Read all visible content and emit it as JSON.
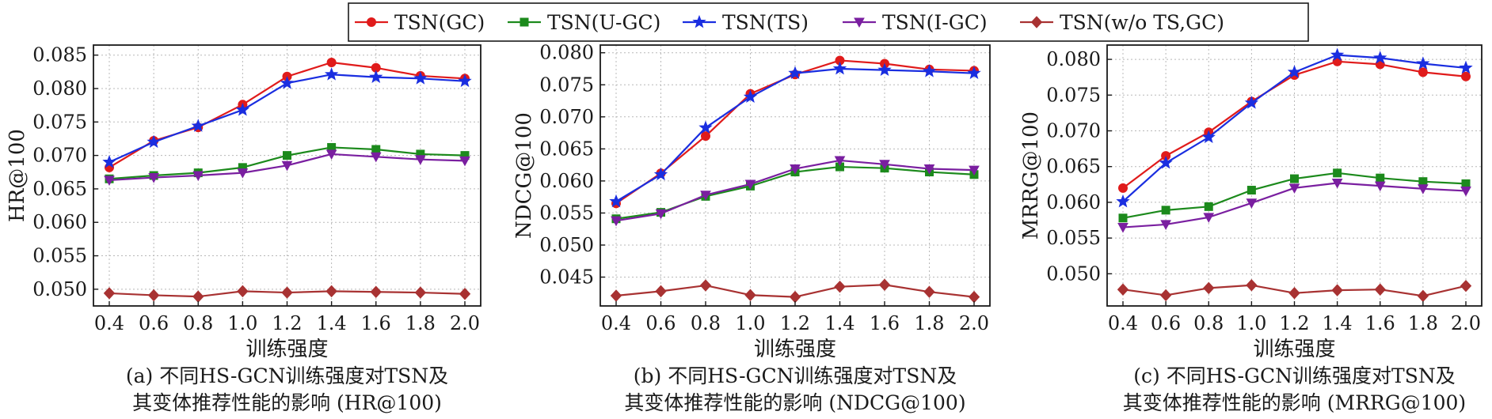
{
  "legend": [
    {
      "name": "TSN(GC)",
      "color": "#e01b1b",
      "marker": "circle"
    },
    {
      "name": "TSN(U-GC)",
      "color": "#1c8a1c",
      "marker": "square"
    },
    {
      "name": "TSN(TS)",
      "color": "#1a2ee0",
      "marker": "star"
    },
    {
      "name": "TSN(I-GC)",
      "color": "#7a1fa0",
      "marker": "triangle-down"
    },
    {
      "name": "TSN(w/o TS,GC)",
      "color": "#a83232",
      "marker": "diamond"
    }
  ],
  "chart_data": [
    {
      "type": "line",
      "title": "",
      "xlabel": "训练强度",
      "ylabel": "HR@100",
      "caption_line1": "(a) 不同HS-GCN训练强度对TSN及",
      "caption_line2": "其变体推荐性能的影响 (HR@100)",
      "x": [
        0.4,
        0.6,
        0.8,
        1.0,
        1.2,
        1.4,
        1.6,
        1.8,
        2.0
      ],
      "x_tick_labels": [
        "0.4",
        "0.6",
        "0.8",
        "1.0",
        "1.2",
        "1.4",
        "1.6",
        "1.8",
        "2.0"
      ],
      "y_ticks": [
        0.05,
        0.055,
        0.06,
        0.065,
        0.07,
        0.075,
        0.08,
        0.085
      ],
      "y_tick_labels": [
        "0.050",
        "0.055",
        "0.060",
        "0.065",
        "0.070",
        "0.075",
        "0.080",
        "0.085"
      ],
      "ylim": [
        0.0475,
        0.0865
      ],
      "grid": true,
      "series": [
        {
          "name": "TSN(GC)",
          "values": [
            0.0682,
            0.0722,
            0.0742,
            0.0776,
            0.0818,
            0.0839,
            0.0831,
            0.0819,
            0.0815
          ]
        },
        {
          "name": "TSN(U-GC)",
          "values": [
            0.0665,
            0.067,
            0.0674,
            0.0682,
            0.07,
            0.0712,
            0.0709,
            0.0702,
            0.07
          ]
        },
        {
          "name": "TSN(TS)",
          "values": [
            0.069,
            0.072,
            0.0744,
            0.0768,
            0.0808,
            0.0821,
            0.0817,
            0.0815,
            0.0811
          ]
        },
        {
          "name": "TSN(I-GC)",
          "values": [
            0.0663,
            0.0667,
            0.067,
            0.0674,
            0.0685,
            0.0702,
            0.0698,
            0.0694,
            0.0692
          ]
        },
        {
          "name": "TSN(w/o TS,GC)",
          "values": [
            0.0494,
            0.0491,
            0.0489,
            0.0497,
            0.0495,
            0.0497,
            0.0496,
            0.0495,
            0.0493
          ]
        }
      ]
    },
    {
      "type": "line",
      "title": "",
      "xlabel": "训练强度",
      "ylabel": "NDCG@100",
      "caption_line1": "(b) 不同HS-GCN训练强度对TSN及",
      "caption_line2": "其变体推荐性能的影响 (NDCG@100)",
      "x": [
        0.4,
        0.6,
        0.8,
        1.0,
        1.2,
        1.4,
        1.6,
        1.8,
        2.0
      ],
      "x_tick_labels": [
        "0.4",
        "0.6",
        "0.8",
        "1.0",
        "1.2",
        "1.4",
        "1.6",
        "1.8",
        "2.0"
      ],
      "y_ticks": [
        0.045,
        0.05,
        0.055,
        0.06,
        0.065,
        0.07,
        0.075,
        0.08
      ],
      "y_tick_labels": [
        "0.045",
        "0.050",
        "0.055",
        "0.060",
        "0.065",
        "0.070",
        "0.075",
        "0.080"
      ],
      "ylim": [
        0.0405,
        0.0812
      ],
      "grid": true,
      "series": [
        {
          "name": "TSN(GC)",
          "values": [
            0.0565,
            0.0612,
            0.067,
            0.0736,
            0.0766,
            0.0788,
            0.0783,
            0.0774,
            0.0772
          ]
        },
        {
          "name": "TSN(U-GC)",
          "values": [
            0.0541,
            0.0551,
            0.0576,
            0.0592,
            0.0614,
            0.0622,
            0.062,
            0.0614,
            0.061
          ]
        },
        {
          "name": "TSN(TS)",
          "values": [
            0.0568,
            0.061,
            0.0683,
            0.0731,
            0.0768,
            0.0775,
            0.0773,
            0.0771,
            0.0768
          ]
        },
        {
          "name": "TSN(I-GC)",
          "values": [
            0.0538,
            0.0549,
            0.0578,
            0.0595,
            0.0619,
            0.0632,
            0.0626,
            0.0619,
            0.0617
          ]
        },
        {
          "name": "TSN(w/o TS,GC)",
          "values": [
            0.0421,
            0.0428,
            0.0437,
            0.0422,
            0.0419,
            0.0435,
            0.0438,
            0.0427,
            0.0419
          ]
        }
      ]
    },
    {
      "type": "line",
      "title": "",
      "xlabel": "训练强度",
      "ylabel": "MRRG@100",
      "caption_line1": "(c) 不同HS-GCN训练强度对TSN及",
      "caption_line2": "其变体推荐性能的影响 (MRRG@100)",
      "x": [
        0.4,
        0.6,
        0.8,
        1.0,
        1.2,
        1.4,
        1.6,
        1.8,
        2.0
      ],
      "x_tick_labels": [
        "0.4",
        "0.6",
        "0.8",
        "1.0",
        "1.2",
        "1.4",
        "1.6",
        "1.8",
        "2.0"
      ],
      "y_ticks": [
        0.05,
        0.055,
        0.06,
        0.065,
        0.07,
        0.075,
        0.08
      ],
      "y_tick_labels": [
        "0.050",
        "0.055",
        "0.060",
        "0.065",
        "0.070",
        "0.075",
        "0.080"
      ],
      "ylim": [
        0.0455,
        0.082
      ],
      "grid": true,
      "series": [
        {
          "name": "TSN(GC)",
          "values": [
            0.062,
            0.0665,
            0.0698,
            0.0741,
            0.0778,
            0.0797,
            0.0793,
            0.0782,
            0.0776
          ]
        },
        {
          "name": "TSN(U-GC)",
          "values": [
            0.0578,
            0.0589,
            0.0594,
            0.0617,
            0.0633,
            0.0641,
            0.0634,
            0.0629,
            0.0626
          ]
        },
        {
          "name": "TSN(TS)",
          "values": [
            0.0601,
            0.0655,
            0.0691,
            0.0739,
            0.0782,
            0.0806,
            0.0802,
            0.0794,
            0.0788
          ]
        },
        {
          "name": "TSN(I-GC)",
          "values": [
            0.0565,
            0.0569,
            0.0579,
            0.0599,
            0.062,
            0.0627,
            0.0623,
            0.0619,
            0.0616
          ]
        },
        {
          "name": "TSN(w/o TS,GC)",
          "values": [
            0.0478,
            0.047,
            0.048,
            0.0484,
            0.0473,
            0.0477,
            0.0478,
            0.0469,
            0.0483
          ]
        }
      ]
    }
  ]
}
